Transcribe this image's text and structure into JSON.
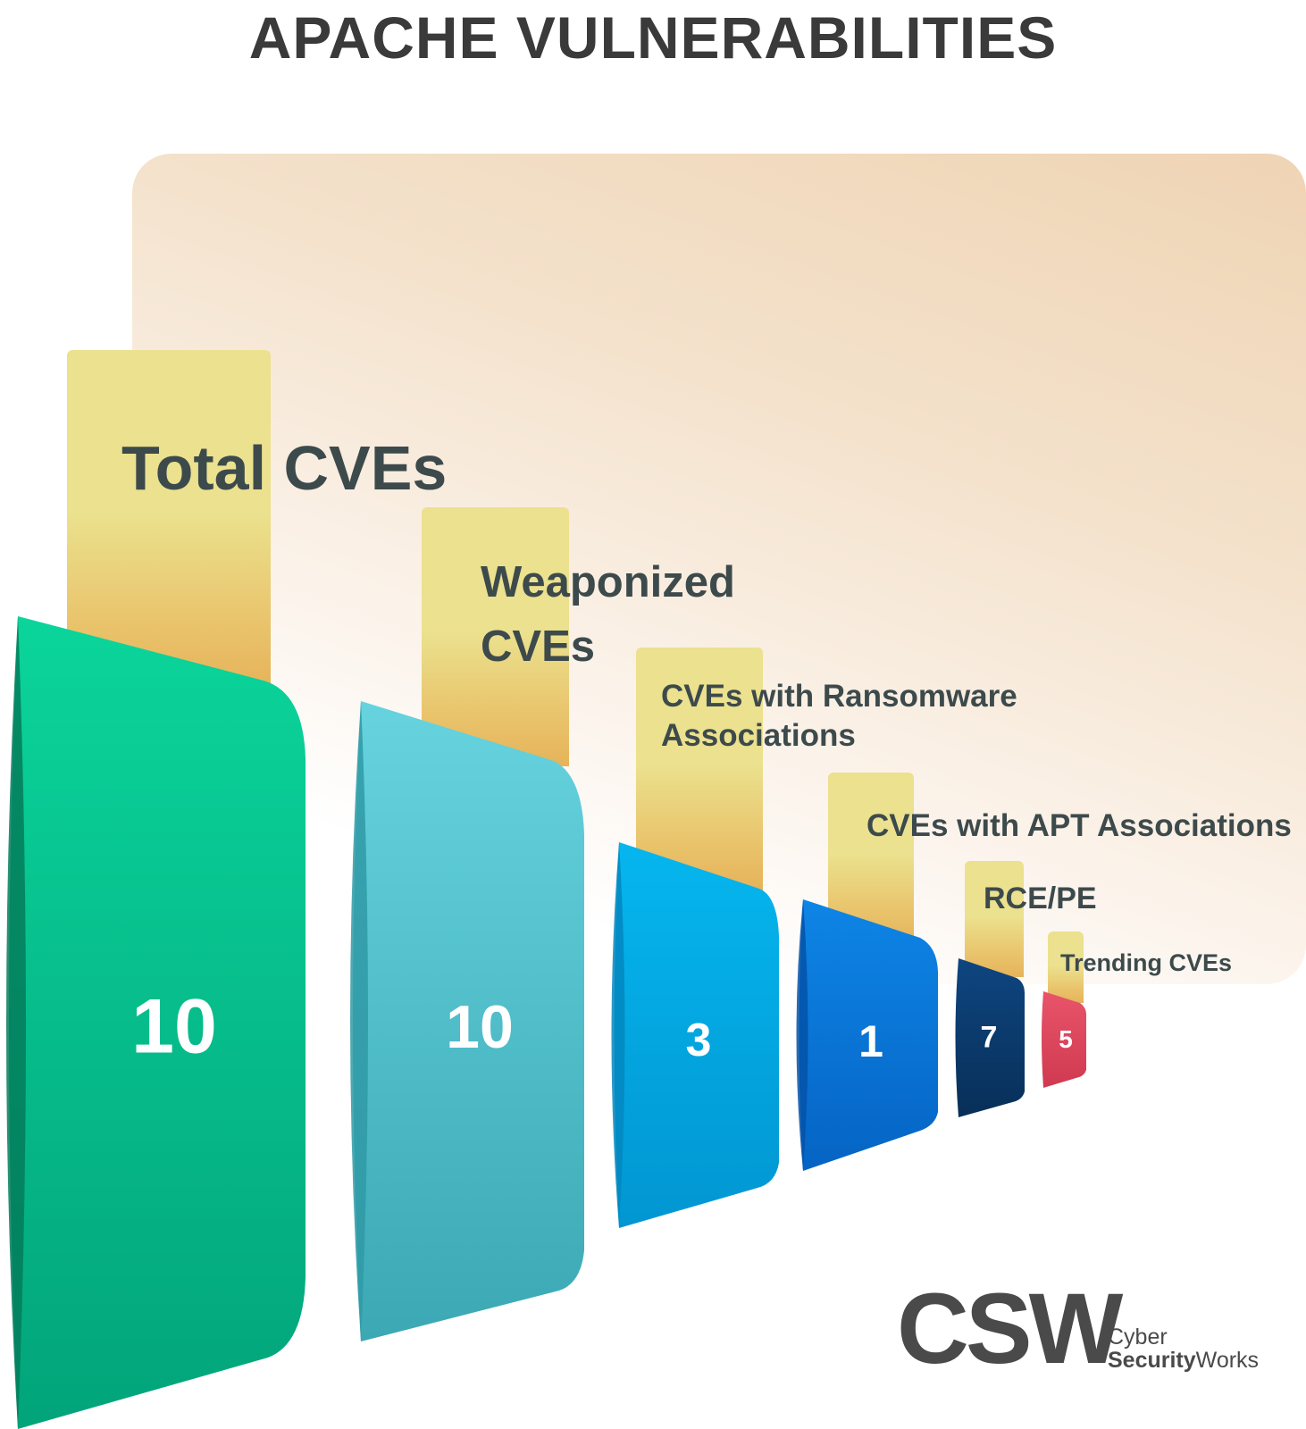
{
  "title": "APACHE VULNERABILITIES",
  "categories": [
    {
      "label": "Total CVEs",
      "value": "10",
      "color": "#08cd95"
    },
    {
      "label": "Weaponized\nCVEs",
      "value": "10",
      "color": "#5ccbd6"
    },
    {
      "label": "CVEs with Ransomware\nAssociations",
      "value": "3",
      "color": "#03aee8"
    },
    {
      "label": "CVEs with APT Associations",
      "value": "1",
      "color": "#0a76d8"
    },
    {
      "label": "RCE/PE",
      "value": "7",
      "color": "#0c3b6a"
    },
    {
      "label": "Trending CVEs",
      "value": "5",
      "color": "#e0485c"
    }
  ],
  "logo": {
    "mark": "CSW",
    "line1": "Cyber",
    "line2_bold": "Security",
    "line2_regular": "Works"
  }
}
